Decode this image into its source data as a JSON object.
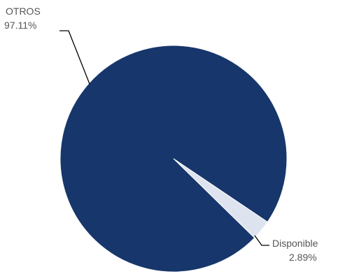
{
  "chart_data": {
    "type": "pie",
    "title": "",
    "slices": [
      {
        "name": "OTROS",
        "value": 97.11,
        "label_value": "97.11%",
        "color": "#17366b"
      },
      {
        "name": "Disponible",
        "value": 2.89,
        "label_value": "2.89%",
        "color": "#dde3ef"
      }
    ],
    "legend": "none",
    "data_labels": "outside-with-leader-lines"
  }
}
